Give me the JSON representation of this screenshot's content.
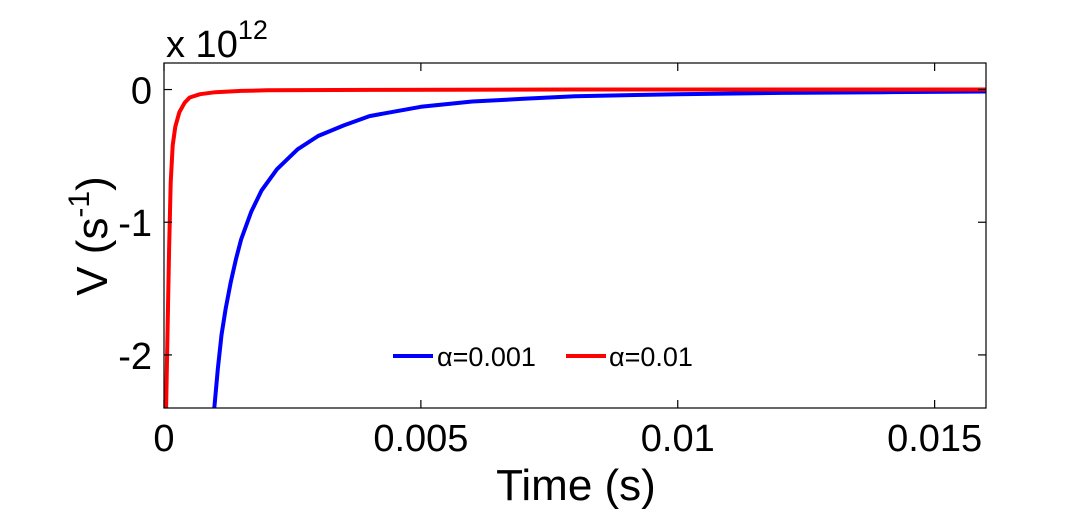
{
  "chart_data": {
    "type": "line",
    "title": "",
    "xlabel": "Time (s)",
    "ylabel": "V (s",
    "ylabel_sup": "-1",
    "ylabel_close": ")",
    "scale_text": "x 10",
    "scale_exp": "12",
    "xlim": [
      0,
      0.016
    ],
    "ylim": [
      -2.4,
      0.2
    ],
    "xticks": [
      0,
      0.005,
      0.01,
      0.015
    ],
    "xtick_labels": [
      "0",
      "0.005",
      "0.01",
      "0.015"
    ],
    "yticks": [
      0,
      -1,
      -2
    ],
    "ytick_labels": [
      "0",
      "-1",
      "-2"
    ],
    "grid": false,
    "legend_position": "lower-center",
    "series": [
      {
        "name": "α=0.001",
        "color": "#0000ff",
        "points": [
          [
            0.00098,
            -2.4
          ],
          [
            0.00105,
            -2.1
          ],
          [
            0.00112,
            -1.85
          ],
          [
            0.0012,
            -1.65
          ],
          [
            0.0013,
            -1.45
          ],
          [
            0.0014,
            -1.28
          ],
          [
            0.0015,
            -1.13
          ],
          [
            0.0017,
            -0.92
          ],
          [
            0.0019,
            -0.76
          ],
          [
            0.0022,
            -0.6
          ],
          [
            0.0026,
            -0.45
          ],
          [
            0.003,
            -0.35
          ],
          [
            0.0035,
            -0.27
          ],
          [
            0.004,
            -0.2
          ],
          [
            0.005,
            -0.13
          ],
          [
            0.006,
            -0.09
          ],
          [
            0.007,
            -0.07
          ],
          [
            0.008,
            -0.05
          ],
          [
            0.01,
            -0.035
          ],
          [
            0.012,
            -0.025
          ],
          [
            0.014,
            -0.02
          ],
          [
            0.016,
            -0.015
          ]
        ]
      },
      {
        "name": "α=0.01",
        "color": "#ff0000",
        "points": [
          [
            4e-05,
            -2.4
          ],
          [
            7e-05,
            -1.8
          ],
          [
            0.0001,
            -1.2
          ],
          [
            0.00013,
            -0.7
          ],
          [
            0.00017,
            -0.42
          ],
          [
            0.00022,
            -0.28
          ],
          [
            0.0003,
            -0.17
          ],
          [
            0.0004,
            -0.1
          ],
          [
            0.0005,
            -0.06
          ],
          [
            0.0007,
            -0.035
          ],
          [
            0.001,
            -0.02
          ],
          [
            0.0015,
            -0.01
          ],
          [
            0.002,
            -0.006
          ],
          [
            0.004,
            -0.003
          ],
          [
            0.008,
            0.0
          ],
          [
            0.012,
            0.0
          ],
          [
            0.016,
            0.0
          ]
        ]
      }
    ]
  }
}
